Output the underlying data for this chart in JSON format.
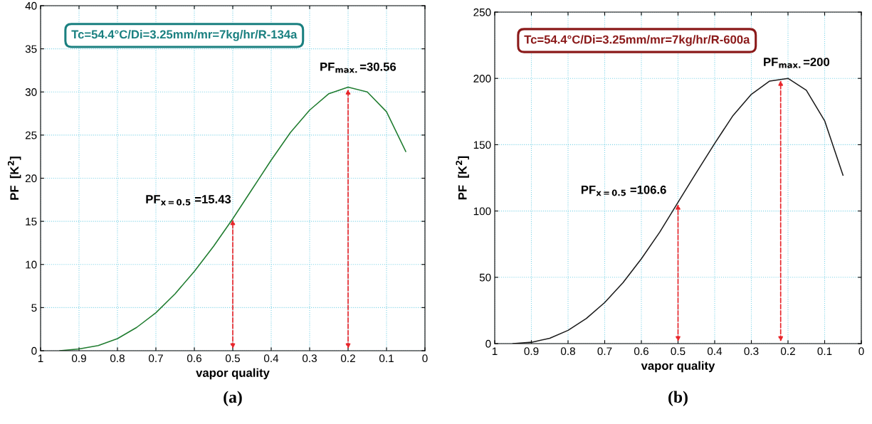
{
  "chart_data": [
    {
      "type": "line",
      "xlabel": "vapor quality",
      "ylabel": "PF  [K$^{2}$]",
      "x": [
        0.95,
        0.9,
        0.85,
        0.8,
        0.75,
        0.7,
        0.65,
        0.6,
        0.55,
        0.5,
        0.45,
        0.4,
        0.35,
        0.3,
        0.25,
        0.2,
        0.15,
        0.1,
        0.05
      ],
      "series": [
        {
          "color": "#1e7b2e",
          "values": [
            0,
            0.2,
            0.6,
            1.4,
            2.7,
            4.4,
            6.6,
            9.2,
            12.1,
            15.3,
            18.7,
            22.1,
            25.3,
            27.9,
            29.8,
            30.56,
            30.0,
            27.7,
            23.1
          ]
        }
      ],
      "xlim": [
        1,
        0
      ],
      "xticks": [
        1,
        0.9,
        0.8,
        0.7,
        0.6,
        0.5,
        0.4,
        0.3,
        0.2,
        0.1,
        0
      ],
      "ylim": [
        0,
        40
      ],
      "yticks": [
        0,
        5,
        10,
        15,
        20,
        25,
        30,
        35,
        40
      ],
      "grid": true,
      "annotations": [
        "Tc=54.4°C/Di=3.25mm/mr=7kg/hr/R-134a",
        {
          "text": "PF$_{x=0.5}$ =15.43",
          "x": 0.5,
          "y": 15.43
        },
        {
          "text": "PF$_{max.}$=30.56",
          "x": 0.2,
          "y": 30.56
        },
        "(a)"
      ]
    },
    {
      "type": "line",
      "xlabel": "vapor quality",
      "ylabel": "PF  [K$^{2}$]",
      "x": [
        0.95,
        0.9,
        0.85,
        0.8,
        0.75,
        0.7,
        0.65,
        0.6,
        0.55,
        0.5,
        0.45,
        0.4,
        0.35,
        0.3,
        0.25,
        0.2,
        0.15,
        0.1,
        0.05
      ],
      "series": [
        {
          "color": "#1a1a1a",
          "values": [
            0,
            1,
            4,
            10,
            19,
            31,
            46,
            64,
            84,
            106.6,
            129,
            151,
            172,
            188,
            198,
            200,
            191,
            168,
            127
          ]
        }
      ],
      "xlim": [
        1,
        0
      ],
      "xticks": [
        1,
        0.9,
        0.8,
        0.7,
        0.6,
        0.5,
        0.4,
        0.3,
        0.2,
        0.1,
        0
      ],
      "ylim": [
        0,
        250
      ],
      "yticks": [
        0,
        50,
        100,
        150,
        200,
        250
      ],
      "grid": true,
      "annotations": [
        "Tc=54.4°C/Di=3.25mm/mr=7kg/hr/R-600a",
        {
          "text": "PF$_{x=0.5}$ =106.6",
          "x": 0.5,
          "y": 106.6
        },
        {
          "text": "PF$_{max.}$=200",
          "x": 0.22,
          "y": 200
        },
        "(b)"
      ]
    }
  ]
}
